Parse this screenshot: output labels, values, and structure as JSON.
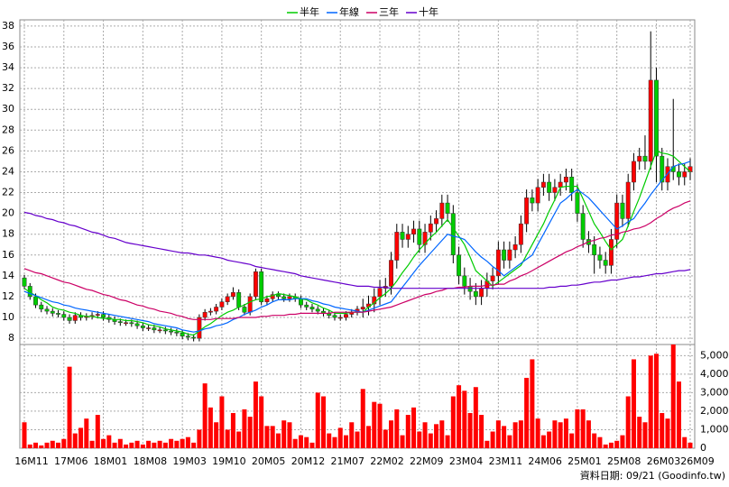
{
  "chart_data": {
    "type": "candlestick",
    "footer": "資料日期: 09/21 (Goodinfo.tw)",
    "up_color": "#ff0000",
    "down_color": "#00cc00",
    "ylim": [
      7.4,
      38.6
    ],
    "yticks": [
      8,
      10,
      12,
      14,
      16,
      18,
      20,
      22,
      24,
      26,
      28,
      30,
      32,
      34,
      36,
      38
    ],
    "grid": true,
    "categories": [
      "16M11",
      null,
      null,
      null,
      null,
      null,
      null,
      "17M06",
      null,
      null,
      null,
      null,
      null,
      null,
      "18M01",
      null,
      null,
      null,
      null,
      null,
      null,
      "18M08",
      null,
      null,
      null,
      null,
      null,
      null,
      "19M03",
      null,
      null,
      null,
      null,
      null,
      null,
      "19M10",
      null,
      null,
      null,
      null,
      null,
      null,
      "20M05",
      null,
      null,
      null,
      null,
      null,
      null,
      "20M12",
      null,
      null,
      null,
      null,
      null,
      null,
      "21M07",
      null,
      null,
      null,
      null,
      null,
      null,
      "22M02",
      null,
      null,
      null,
      null,
      null,
      null,
      "22M09",
      null,
      null,
      null,
      null,
      null,
      null,
      "23M04",
      null,
      null,
      null,
      null,
      null,
      null,
      "23M11",
      null,
      null,
      null,
      null,
      null,
      null,
      "24M06",
      null,
      null,
      null,
      null,
      null,
      null,
      "25M01",
      null,
      null,
      null,
      null,
      null,
      null,
      "25M08",
      null,
      null,
      null,
      null,
      null,
      null,
      "26M03",
      null,
      null,
      null,
      null,
      null,
      "26M09"
    ],
    "open": [
      13.8,
      13.0,
      12.0,
      11.2,
      10.8,
      10.6,
      10.4,
      10.3,
      10.0,
      9.7,
      10.2,
      10.0,
      10.1,
      10.2,
      10.3,
      10.0,
      9.8,
      9.6,
      9.5,
      9.5,
      9.4,
      9.2,
      9.0,
      9.0,
      8.8,
      8.8,
      8.7,
      8.6,
      8.5,
      8.2,
      8.1,
      8.0,
      10.0,
      10.5,
      10.6,
      11.0,
      11.5,
      12.0,
      12.4,
      11.0,
      10.5,
      12.0,
      14.4,
      11.5,
      11.8,
      12.2,
      12.0,
      11.8,
      12.0,
      11.8,
      11.2,
      11.0,
      10.8,
      10.6,
      10.4,
      10.2,
      10.0,
      10.0,
      10.3,
      10.5,
      10.8,
      11.0,
      11.3,
      12.0,
      12.8,
      13.0,
      15.5,
      18.2,
      17.5,
      18.0,
      18.5,
      17.0,
      18.2,
      19.0,
      19.5,
      21.0,
      20.0,
      16.0,
      14.0,
      13.0,
      12.5,
      12.0,
      12.8,
      13.5,
      14.0,
      16.5,
      15.5,
      16.5,
      17.0,
      19.0,
      21.5,
      21.0,
      22.5,
      23.0,
      22.0,
      22.5,
      23.0,
      23.5,
      22.0,
      20.0,
      17.5,
      17.0,
      16.0,
      15.5,
      15.0,
      17.5,
      21.0,
      19.5,
      23.0,
      25.0,
      25.5,
      25.0,
      32.8,
      25.5,
      23.0,
      24.5,
      24.0,
      23.5,
      24.0
    ],
    "high": [
      14.1,
      13.3,
      12.3,
      11.5,
      11.1,
      10.9,
      10.7,
      10.6,
      10.3,
      10.5,
      10.5,
      10.4,
      10.5,
      10.6,
      10.6,
      10.3,
      10.1,
      9.9,
      9.8,
      9.8,
      9.7,
      9.5,
      9.3,
      9.3,
      9.1,
      9.1,
      9.0,
      8.9,
      8.8,
      8.5,
      8.4,
      10.3,
      10.8,
      10.9,
      11.3,
      11.8,
      12.3,
      12.9,
      12.7,
      11.3,
      12.3,
      14.7,
      14.7,
      12.1,
      12.5,
      12.5,
      12.3,
      12.3,
      12.3,
      12.1,
      11.5,
      11.3,
      11.1,
      10.9,
      10.7,
      10.5,
      10.3,
      10.6,
      10.8,
      11.1,
      11.8,
      12.1,
      12.8,
      13.6,
      13.8,
      16.3,
      19.0,
      19.0,
      18.8,
      19.3,
      19.3,
      19.0,
      19.8,
      20.3,
      21.8,
      21.8,
      20.8,
      16.8,
      14.8,
      13.8,
      13.3,
      13.6,
      14.3,
      14.8,
      17.3,
      17.3,
      17.3,
      17.8,
      19.8,
      22.3,
      22.3,
      23.3,
      23.8,
      23.8,
      23.3,
      23.8,
      24.3,
      24.3,
      22.8,
      20.8,
      18.3,
      17.8,
      16.8,
      16.3,
      18.5,
      21.8,
      21.8,
      23.8,
      25.8,
      26.3,
      27.5,
      37.5,
      34.0,
      26.3,
      25.3,
      31.0,
      24.8,
      24.8,
      25.3
    ],
    "low": [
      12.7,
      11.7,
      10.9,
      10.5,
      10.3,
      10.1,
      10.0,
      9.7,
      9.4,
      9.4,
      9.7,
      9.7,
      9.8,
      9.9,
      9.7,
      9.5,
      9.3,
      9.2,
      9.2,
      9.1,
      8.9,
      8.7,
      8.7,
      8.5,
      8.5,
      8.4,
      8.3,
      8.2,
      7.9,
      7.8,
      7.7,
      7.7,
      9.7,
      10.2,
      10.3,
      10.7,
      11.2,
      11.7,
      10.7,
      10.2,
      10.2,
      11.7,
      11.2,
      11.2,
      11.5,
      11.7,
      11.5,
      11.5,
      11.5,
      10.9,
      10.7,
      10.5,
      10.3,
      10.1,
      9.9,
      9.7,
      9.7,
      9.7,
      10.0,
      10.2,
      10.0,
      10.2,
      10.5,
      11.2,
      12.0,
      12.2,
      14.7,
      16.7,
      16.7,
      17.2,
      16.2,
      16.2,
      17.4,
      18.2,
      18.7,
      19.2,
      15.2,
      13.2,
      12.2,
      11.7,
      11.2,
      11.2,
      12.0,
      12.7,
      13.2,
      14.7,
      14.7,
      15.7,
      16.2,
      18.2,
      20.2,
      20.2,
      21.7,
      21.2,
      21.2,
      21.7,
      22.2,
      21.2,
      19.2,
      16.7,
      16.2,
      14.2,
      14.7,
      14.2,
      14.2,
      16.7,
      18.7,
      18.7,
      22.2,
      24.2,
      24.2,
      24.2,
      23.0,
      22.2,
      22.2,
      23.2,
      22.7,
      22.7,
      23.2
    ],
    "close": [
      13.0,
      12.0,
      11.2,
      10.8,
      10.6,
      10.4,
      10.3,
      10.0,
      9.7,
      10.2,
      10.0,
      10.1,
      10.2,
      10.3,
      10.0,
      9.8,
      9.6,
      9.5,
      9.5,
      9.4,
      9.2,
      9.0,
      9.0,
      8.8,
      8.8,
      8.7,
      8.6,
      8.5,
      8.2,
      8.1,
      8.0,
      10.0,
      10.5,
      10.6,
      11.0,
      11.5,
      12.0,
      12.4,
      11.0,
      10.5,
      12.0,
      14.4,
      11.5,
      11.8,
      12.2,
      12.0,
      11.8,
      12.0,
      11.8,
      11.2,
      11.0,
      10.8,
      10.6,
      10.4,
      10.2,
      10.0,
      10.0,
      10.3,
      10.5,
      10.8,
      11.0,
      11.3,
      12.0,
      12.8,
      13.0,
      15.5,
      18.2,
      17.5,
      18.0,
      18.5,
      17.0,
      18.2,
      19.0,
      19.5,
      21.0,
      20.0,
      16.0,
      14.0,
      13.0,
      12.5,
      12.0,
      12.8,
      13.5,
      14.0,
      16.5,
      15.5,
      16.5,
      17.0,
      19.0,
      21.5,
      21.0,
      22.5,
      23.0,
      22.0,
      22.5,
      23.0,
      23.5,
      22.0,
      20.0,
      17.5,
      17.0,
      16.0,
      15.5,
      15.0,
      17.5,
      21.0,
      19.5,
      23.0,
      25.0,
      25.5,
      25.0,
      32.8,
      25.5,
      23.0,
      24.5,
      24.0,
      23.5,
      24.0,
      24.5
    ],
    "series": [
      {
        "name": "半年",
        "color": "#00cc00",
        "values": [
          12.8,
          12.4,
          12.1,
          11.7,
          11.4,
          11.0,
          10.8,
          10.7,
          10.5,
          10.4,
          10.2,
          10.1,
          10.1,
          10.0,
          9.9,
          9.9,
          9.8,
          9.8,
          9.7,
          9.7,
          9.6,
          9.5,
          9.3,
          9.2,
          9.1,
          8.9,
          8.8,
          8.7,
          8.6,
          8.4,
          8.3,
          8.7,
          9.1,
          9.4,
          9.8,
          10.2,
          10.5,
          10.7,
          11.0,
          11.2,
          11.5,
          11.7,
          11.8,
          12.0,
          12.1,
          12.3,
          12.2,
          12.1,
          12.0,
          11.8,
          11.7,
          11.4,
          11.2,
          10.9,
          10.7,
          10.4,
          10.4,
          10.4,
          10.5,
          10.5,
          10.5,
          11.0,
          11.4,
          11.9,
          12.3,
          12.8,
          13.5,
          14.3,
          15.0,
          15.8,
          16.5,
          17.1,
          17.7,
          18.2,
          18.8,
          19.4,
          18.6,
          17.8,
          17.0,
          15.8,
          14.5,
          14.0,
          13.5,
          13.0,
          13.4,
          13.8,
          14.2,
          14.6,
          15.0,
          16.0,
          17.0,
          18.0,
          19.0,
          20.2,
          21.3,
          22.5,
          22.6,
          22.6,
          22.6,
          21.4,
          20.2,
          19.0,
          18.2,
          17.3,
          16.5,
          17.0,
          17.5,
          18.8,
          20.2,
          21.5,
          23.0,
          24.5,
          26.0,
          25.8,
          25.7,
          25.5,
          25.0,
          24.5,
          24.0
        ]
      },
      {
        "name": "年線",
        "color": "#0066ff",
        "values": [
          12.5,
          12.3,
          12.1,
          11.9,
          11.7,
          11.5,
          11.4,
          11.2,
          11.1,
          10.9,
          10.8,
          10.7,
          10.6,
          10.5,
          10.4,
          10.3,
          10.2,
          10.1,
          10.0,
          9.9,
          9.8,
          9.7,
          9.6,
          9.4,
          9.3,
          9.2,
          9.1,
          9.0,
          8.8,
          8.7,
          8.6,
          8.7,
          8.9,
          9.0,
          9.2,
          9.3,
          9.5,
          9.8,
          10.0,
          10.3,
          10.5,
          10.7,
          11.0,
          11.2,
          11.5,
          11.7,
          11.7,
          11.7,
          11.8,
          11.8,
          11.8,
          11.6,
          11.5,
          11.3,
          11.2,
          11.0,
          10.9,
          10.8,
          10.7,
          10.6,
          10.5,
          10.7,
          10.9,
          11.1,
          11.3,
          11.5,
          12.2,
          12.9,
          13.6,
          14.3,
          15.0,
          15.6,
          16.2,
          16.8,
          17.4,
          18.0,
          17.8,
          17.7,
          17.5,
          16.9,
          16.3,
          15.8,
          15.4,
          14.9,
          14.5,
          14.0,
          14.4,
          14.8,
          15.2,
          15.6,
          16.0,
          17.0,
          18.0,
          19.0,
          20.0,
          21.0,
          21.4,
          21.9,
          22.3,
          21.9,
          21.5,
          20.9,
          20.3,
          19.7,
          19.1,
          18.5,
          18.8,
          19.2,
          19.5,
          20.3,
          21.0,
          21.8,
          22.5,
          23.2,
          23.8,
          24.5,
          24.7,
          24.8,
          25.0
        ]
      },
      {
        "name": "三年",
        "color": "#cc0066",
        "values": [
          14.7,
          14.5,
          14.3,
          14.2,
          14.0,
          13.8,
          13.6,
          13.4,
          13.3,
          13.1,
          12.9,
          12.7,
          12.6,
          12.4,
          12.2,
          12.1,
          11.9,
          11.7,
          11.6,
          11.4,
          11.2,
          11.1,
          10.9,
          10.8,
          10.6,
          10.5,
          10.4,
          10.2,
          10.1,
          9.9,
          9.8,
          9.8,
          9.8,
          9.8,
          9.9,
          9.9,
          9.9,
          9.9,
          10.0,
          10.0,
          10.0,
          10.0,
          10.1,
          10.1,
          10.2,
          10.2,
          10.2,
          10.3,
          10.3,
          10.4,
          10.4,
          10.4,
          10.4,
          10.4,
          10.4,
          10.5,
          10.5,
          10.5,
          10.5,
          10.5,
          10.5,
          10.6,
          10.7,
          10.8,
          10.9,
          11.0,
          11.2,
          11.4,
          11.6,
          11.8,
          12.0,
          12.2,
          12.3,
          12.5,
          12.6,
          12.8,
          12.8,
          12.9,
          12.9,
          13.0,
          13.0,
          13.0,
          13.1,
          13.1,
          13.2,
          13.2,
          13.5,
          13.7,
          14.0,
          14.2,
          14.5,
          14.8,
          15.1,
          15.4,
          15.7,
          16.0,
          16.3,
          16.5,
          16.8,
          17.0,
          17.3,
          17.4,
          17.6,
          17.7,
          17.9,
          18.0,
          18.2,
          18.3,
          18.5,
          18.6,
          18.8,
          19.1,
          19.5,
          19.8,
          20.2,
          20.5,
          20.7,
          21.0,
          21.2
        ]
      },
      {
        "name": "十年",
        "color": "#6600cc",
        "values": [
          20.1,
          20.0,
          19.8,
          19.7,
          19.5,
          19.4,
          19.2,
          19.1,
          18.9,
          18.8,
          18.6,
          18.4,
          18.2,
          18.1,
          17.9,
          17.7,
          17.6,
          17.4,
          17.2,
          17.1,
          17.0,
          16.9,
          16.8,
          16.7,
          16.6,
          16.5,
          16.4,
          16.3,
          16.2,
          16.2,
          16.1,
          16.0,
          16.0,
          15.9,
          15.8,
          15.7,
          15.5,
          15.4,
          15.3,
          15.2,
          15.1,
          14.9,
          14.8,
          14.7,
          14.6,
          14.5,
          14.4,
          14.3,
          14.2,
          14.0,
          13.9,
          13.8,
          13.7,
          13.6,
          13.5,
          13.4,
          13.3,
          13.2,
          13.1,
          13.0,
          13.0,
          13.0,
          12.9,
          12.9,
          12.9,
          12.8,
          12.8,
          12.8,
          12.8,
          12.8,
          12.8,
          12.8,
          12.8,
          12.8,
          12.8,
          12.8,
          12.8,
          12.8,
          12.8,
          12.8,
          12.8,
          12.8,
          12.8,
          12.8,
          12.8,
          12.8,
          12.8,
          12.8,
          12.8,
          12.8,
          12.8,
          12.8,
          12.8,
          12.9,
          12.9,
          13.0,
          13.0,
          13.1,
          13.1,
          13.2,
          13.3,
          13.4,
          13.4,
          13.5,
          13.6,
          13.6,
          13.7,
          13.8,
          13.9,
          13.9,
          14.0,
          14.1,
          14.2,
          14.2,
          14.3,
          14.4,
          14.5,
          14.5,
          14.6
        ]
      }
    ],
    "volume": {
      "color": "#ff0000",
      "ylim": [
        0,
        5600
      ],
      "yticks": [
        0,
        {
          "value": 1000,
          "label": "1,000"
        },
        {
          "value": 2000,
          "label": "2,000"
        },
        {
          "value": 3000,
          "label": "3,000"
        },
        {
          "value": 4000,
          "label": "4,000"
        },
        {
          "value": 5000,
          "label": "5,000"
        }
      ],
      "values": [
        1400,
        200,
        300,
        150,
        300,
        400,
        300,
        500,
        4400,
        800,
        1100,
        1600,
        400,
        1800,
        500,
        700,
        300,
        500,
        200,
        300,
        400,
        200,
        400,
        300,
        400,
        300,
        500,
        400,
        500,
        600,
        300,
        1000,
        3500,
        2200,
        1400,
        2800,
        1000,
        1900,
        900,
        2100,
        1700,
        3600,
        2800,
        1200,
        1200,
        800,
        1500,
        1400,
        500,
        700,
        600,
        300,
        3000,
        2800,
        800,
        600,
        1100,
        700,
        1400,
        900,
        3200,
        1200,
        2500,
        2400,
        1000,
        1500,
        2100,
        700,
        1800,
        2200,
        900,
        1400,
        800,
        1300,
        1500,
        700,
        2800,
        3400,
        3100,
        1900,
        3300,
        1800,
        400,
        900,
        1500,
        1200,
        700,
        1400,
        1500,
        3800,
        4800,
        1600,
        700,
        900,
        1500,
        1400,
        1600,
        800,
        2100,
        2100,
        1500,
        800,
        600,
        200,
        300,
        400,
        700,
        2800,
        4800,
        1700,
        1400,
        5000,
        5100,
        1900,
        1600,
        5600,
        3600,
        600,
        300
      ]
    }
  }
}
